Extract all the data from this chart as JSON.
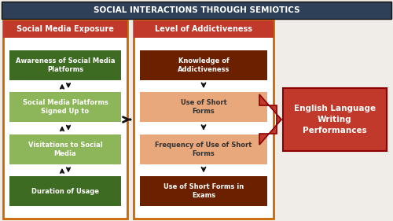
{
  "title": "SOCIAL INTERACTIONS THROUGH SEMIOTICS",
  "title_bg": "#2e4057",
  "title_color": "#ffffff",
  "fig_bg": "#f0ede8",
  "col1_header": "Social Media Exposure",
  "col1_header_bg": "#c0392b",
  "col1_border": "#cc6600",
  "col1_boxes": [
    {
      "text": "Awareness of Social Media\nPlatforms",
      "color": "#3d6b21",
      "text_color": "#ffffff"
    },
    {
      "text": "Social Media Platforms\nSigned Up to",
      "color": "#8db55a",
      "text_color": "#ffffff"
    },
    {
      "text": "Visitations to Social\nMedia",
      "color": "#8db55a",
      "text_color": "#ffffff"
    },
    {
      "text": "Duration of Usage",
      "color": "#3d6b21",
      "text_color": "#ffffff"
    }
  ],
  "col2_header": "Level of Addictiveness",
  "col2_header_bg": "#c0392b",
  "col2_border": "#cc6600",
  "col2_boxes": [
    {
      "text": "Knowledge of\nAddictiveness",
      "color": "#6b2000",
      "text_color": "#ffffff"
    },
    {
      "text": "Use of Short\nForms",
      "color": "#e8a87c",
      "text_color": "#333333"
    },
    {
      "text": "Frequency of Use of Short\nForms",
      "color": "#e8a87c",
      "text_color": "#333333"
    },
    {
      "text": "Use of Short Forms in\nExams",
      "color": "#6b2000",
      "text_color": "#ffffff"
    }
  ],
  "result_box_text": "English Language\nWriting\nPerformances",
  "result_box_color": "#c0392b",
  "result_box_text_color": "#ffffff",
  "result_border_color": "#8b0000",
  "arrow_color": "#111111",
  "big_arrow_color": "#c0392b",
  "big_arrow_edge": "#8b0000"
}
